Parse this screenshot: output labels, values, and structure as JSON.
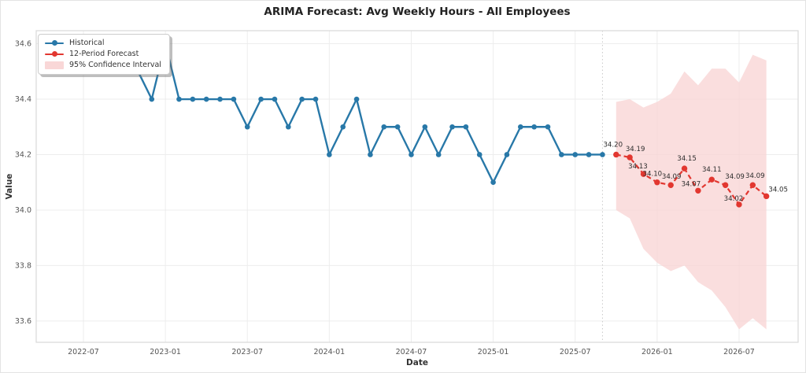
{
  "figure": {
    "title": "ARIMA Forecast: Avg Weekly Hours - All Employees"
  },
  "legend": {
    "items": [
      {
        "label": "Historical",
        "type": "line-marker",
        "color": "#2878a8"
      },
      {
        "label": "12-Period Forecast",
        "type": "line-marker",
        "color": "#e23730"
      },
      {
        "label": "95% Confidence Interval",
        "type": "patch",
        "color": "#f9d7d7"
      }
    ]
  },
  "chart_data": {
    "type": "line",
    "title": "ARIMA Forecast: Avg Weekly Hours - All Employees",
    "xlabel": "Date",
    "ylabel": "Value",
    "x_tick_labels": [
      "2022-07",
      "2023-01",
      "2023-07",
      "2024-01",
      "2024-07",
      "2025-01",
      "2025-07",
      "2026-01",
      "2026-07"
    ],
    "y_tick_labels": [
      "33.6",
      "33.8",
      "34.0",
      "34.2",
      "34.4",
      "34.6"
    ],
    "ylim": [
      33.523,
      34.647
    ],
    "grid": true,
    "legend_position": "upper-left",
    "colors": {
      "historical": "#2878a8",
      "forecast": "#e23730",
      "band": "#f8d3d3",
      "grid": "#ededed",
      "spine": "#d9d9d9",
      "tick_text": "#555555",
      "annotation_text": "#2e2e2e"
    },
    "forecast_start_marker": "2025-09",
    "series": [
      {
        "name": "Historical",
        "months": [
          "2022-06",
          "2022-07",
          "2022-08",
          "2022-09",
          "2022-10",
          "2022-11",
          "2022-12",
          "2023-01",
          "2023-02",
          "2023-03",
          "2023-04",
          "2023-05",
          "2023-06",
          "2023-07",
          "2023-08",
          "2023-09",
          "2023-10",
          "2023-11",
          "2023-12",
          "2024-01",
          "2024-02",
          "2024-03",
          "2024-04",
          "2024-05",
          "2024-06",
          "2024-07",
          "2024-08",
          "2024-09",
          "2024-10",
          "2024-11",
          "2024-12",
          "2025-01",
          "2025-02",
          "2025-03",
          "2025-04",
          "2025-05",
          "2025-06",
          "2025-07",
          "2025-08",
          "2025-09"
        ],
        "values": [
          34.6,
          34.6,
          34.5,
          34.5,
          34.5,
          34.5,
          34.4,
          34.6,
          34.4,
          34.4,
          34.4,
          34.4,
          34.4,
          34.3,
          34.4,
          34.4,
          34.3,
          34.4,
          34.4,
          34.2,
          34.3,
          34.4,
          34.2,
          34.3,
          34.3,
          34.2,
          34.3,
          34.2,
          34.3,
          34.3,
          34.2,
          34.1,
          34.2,
          34.3,
          34.3,
          34.3,
          34.2,
          34.2,
          34.2,
          34.2
        ]
      },
      {
        "name": "12-Period Forecast",
        "months": [
          "2025-10",
          "2025-11",
          "2025-12",
          "2026-01",
          "2026-02",
          "2026-03",
          "2026-04",
          "2026-05",
          "2026-06",
          "2026-07",
          "2026-08",
          "2026-09"
        ],
        "values": [
          34.2,
          34.19,
          34.13,
          34.1,
          34.09,
          34.15,
          34.07,
          34.11,
          34.09,
          34.02,
          34.09,
          34.05
        ],
        "point_labels": [
          "34.20",
          "34.19",
          "34.13",
          "34.10",
          "34.09",
          "34.15",
          "34.07",
          "34.11",
          "34.09",
          "34.02",
          "34.09",
          "34.05"
        ]
      }
    ],
    "confidence_interval": {
      "name": "95% Confidence Interval",
      "months": [
        "2025-10",
        "2025-11",
        "2025-12",
        "2026-01",
        "2026-02",
        "2026-03",
        "2026-04",
        "2026-05",
        "2026-06",
        "2026-07",
        "2026-08",
        "2026-09"
      ],
      "upper": [
        34.39,
        34.4,
        34.37,
        34.39,
        34.42,
        34.5,
        34.45,
        34.51,
        34.51,
        34.46,
        34.56,
        34.54
      ],
      "lower": [
        34.0,
        33.97,
        33.86,
        33.81,
        33.78,
        33.8,
        33.74,
        33.71,
        33.65,
        33.57,
        33.61,
        33.57
      ]
    }
  }
}
